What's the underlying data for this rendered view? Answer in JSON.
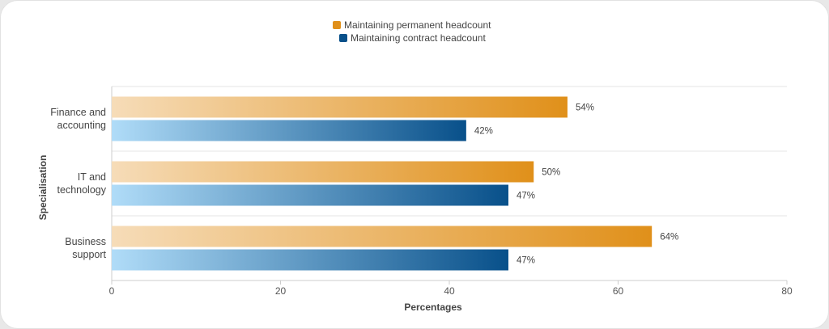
{
  "chart_data": {
    "type": "bar",
    "orientation": "horizontal",
    "categories": [
      [
        "Finance and",
        "accounting"
      ],
      [
        "IT and",
        "technology"
      ],
      [
        "Business",
        "support"
      ]
    ],
    "series": [
      {
        "name": "Maintaining permanent headcount",
        "values": [
          54,
          50,
          64
        ],
        "labels": [
          "54%",
          "50%",
          "64%"
        ],
        "color": "#e0901a",
        "color_light": "#f6dcb8"
      },
      {
        "name": "Maintaining contract headcount",
        "values": [
          42,
          47,
          47
        ],
        "labels": [
          "42%",
          "47%",
          "47%"
        ],
        "color": "#08508a",
        "color_light": "#b0dcf8"
      }
    ],
    "xlabel": "Percentages",
    "ylabel": "Specialisation",
    "xlim": [
      0,
      80
    ],
    "xticks": [
      "0",
      "20",
      "40",
      "60",
      "80"
    ],
    "grid": true,
    "legend_position": "top-center"
  }
}
